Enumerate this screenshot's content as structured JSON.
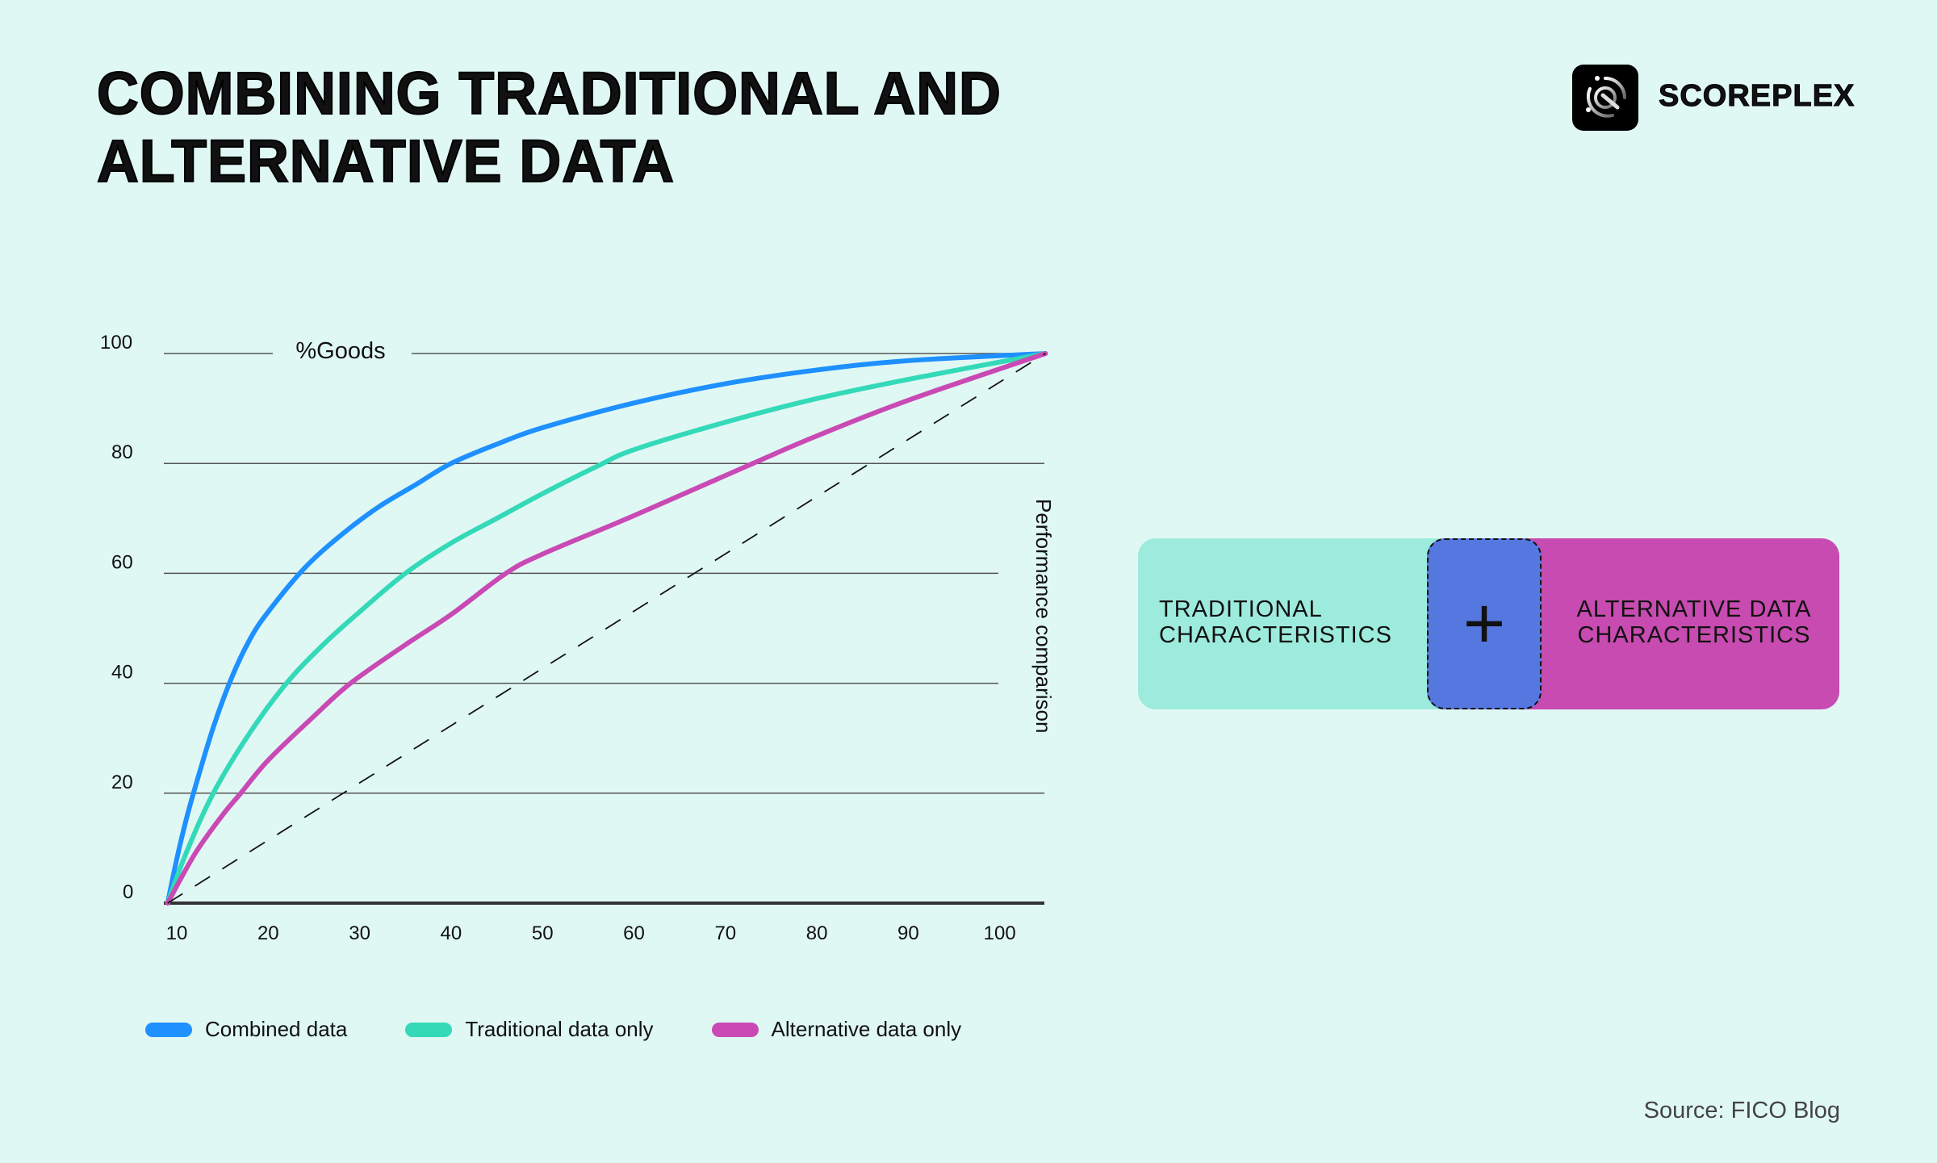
{
  "header": {
    "title_line1": "COMBINING TRADITIONAL AND",
    "title_line2": "ALTERNATIVE DATA",
    "brand": "SCOREPLEX",
    "logo_icon": "scoreplex-logo-icon"
  },
  "chart_data": {
    "type": "line",
    "title": "",
    "ylabel": "%Goods",
    "right_label": "Performance comparison",
    "xlim": [
      9,
      105
    ],
    "ylim": [
      0,
      100
    ],
    "xticks": [
      10,
      20,
      30,
      40,
      50,
      60,
      70,
      80,
      90,
      100
    ],
    "yticks": [
      0,
      20,
      40,
      60,
      80,
      100
    ],
    "grid": "horizontal",
    "legend_placement": "bottom",
    "series": [
      {
        "name": "Combined data",
        "color": "#1E90FF",
        "points": [
          [
            9,
            0
          ],
          [
            10,
            8
          ],
          [
            11,
            15
          ],
          [
            12,
            21
          ],
          [
            14,
            32
          ],
          [
            16,
            41
          ],
          [
            18,
            48
          ],
          [
            20,
            53
          ],
          [
            24,
            61
          ],
          [
            28,
            67
          ],
          [
            32,
            72
          ],
          [
            36,
            76
          ],
          [
            40,
            80
          ],
          [
            45,
            83.5
          ],
          [
            50,
            86.5
          ],
          [
            60,
            91
          ],
          [
            70,
            94.5
          ],
          [
            80,
            97
          ],
          [
            90,
            98.7
          ],
          [
            105,
            100
          ]
        ]
      },
      {
        "name": "Traditional data only",
        "color": "#34D9B8",
        "points": [
          [
            9,
            0
          ],
          [
            11,
            9
          ],
          [
            14,
            20
          ],
          [
            18,
            31
          ],
          [
            22,
            40
          ],
          [
            26,
            47
          ],
          [
            30,
            53
          ],
          [
            35,
            60
          ],
          [
            40,
            65.5
          ],
          [
            45,
            70
          ],
          [
            50,
            74.5
          ],
          [
            56,
            79.5
          ],
          [
            60,
            82.5
          ],
          [
            70,
            87.5
          ],
          [
            80,
            91.8
          ],
          [
            90,
            95.3
          ],
          [
            105,
            100
          ]
        ]
      },
      {
        "name": "Alternative data only",
        "color": "#C94AB4",
        "points": [
          [
            9,
            0
          ],
          [
            12,
            9
          ],
          [
            15,
            16
          ],
          [
            17,
            20
          ],
          [
            20,
            26
          ],
          [
            25,
            34
          ],
          [
            29,
            40
          ],
          [
            35,
            47
          ],
          [
            40,
            52.5
          ],
          [
            46,
            60
          ],
          [
            50,
            63.5
          ],
          [
            60,
            70.5
          ],
          [
            73,
            80
          ],
          [
            80,
            85
          ],
          [
            90,
            91.5
          ],
          [
            105,
            100
          ]
        ]
      },
      {
        "name": "",
        "style": "dashed",
        "color": "#111111",
        "points": [
          [
            9,
            0
          ],
          [
            105,
            100
          ]
        ]
      }
    ]
  },
  "legend": [
    {
      "label": "Combined data",
      "color": "#1E90FF"
    },
    {
      "label": "Traditional data only",
      "color": "#34D9B8"
    },
    {
      "label": "Alternative data only",
      "color": "#C94AB4"
    }
  ],
  "diagram": {
    "left_label": "TRADITIONAL CHARACTERISTICS",
    "plus": "+",
    "right_label": "ALTERNATIVE DATA CHARACTERISTICS",
    "colors": {
      "traditional": "#9DEBDC",
      "overlap": "#5577E0",
      "alternative": "#C74BB0"
    }
  },
  "footer": {
    "source": "Source: FICO Blog"
  }
}
